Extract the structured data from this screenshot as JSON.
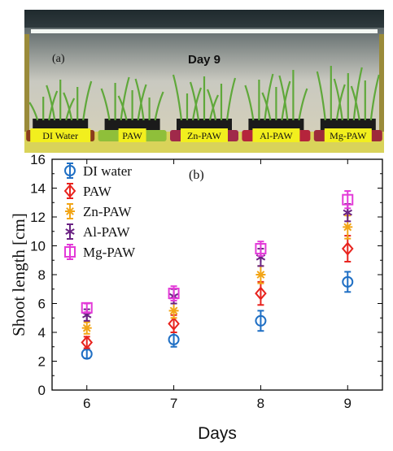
{
  "photo": {
    "panel_label": "(a)",
    "title": "Day 9",
    "tray_labels": [
      "DI Water",
      "PAW",
      "Zn-PAW",
      "Al-PAW",
      "Mg-PAW"
    ],
    "tray_colors": [
      "#8a3b1c",
      "#8fbf3a",
      "#a0294a",
      "#b5243c",
      "#9e2a3a"
    ]
  },
  "chart_data": {
    "type": "scatter",
    "panel_label": "(b)",
    "xlabel": "Days",
    "ylabel": "Shoot length [cm]",
    "x": [
      6,
      7,
      8,
      9
    ],
    "xlim": [
      5.6,
      9.4
    ],
    "ylim": [
      0,
      16
    ],
    "xticks": [
      "6",
      "7",
      "8",
      "9"
    ],
    "yticks": [
      "0",
      "2",
      "4",
      "6",
      "8",
      "10",
      "12",
      "14",
      "16"
    ],
    "grid": false,
    "legend_position": "top-left",
    "series": [
      {
        "name": "DI water",
        "color": "#1f6fc4",
        "marker": "circle",
        "values": [
          2.5,
          3.5,
          4.8,
          7.5
        ],
        "errors": [
          0.3,
          0.5,
          0.7,
          0.7
        ]
      },
      {
        "name": "PAW",
        "color": "#e8231e",
        "marker": "diamond",
        "values": [
          3.3,
          4.6,
          6.7,
          9.8
        ],
        "errors": [
          0.4,
          0.6,
          0.8,
          0.9
        ]
      },
      {
        "name": "Zn-PAW",
        "color": "#f2a516",
        "marker": "asterisk",
        "values": [
          4.3,
          5.5,
          8.0,
          11.3
        ],
        "errors": [
          0.4,
          0.5,
          0.6,
          0.8
        ]
      },
      {
        "name": "Al-PAW",
        "color": "#6a2283",
        "marker": "star",
        "values": [
          5.2,
          6.5,
          9.2,
          12.3
        ],
        "errors": [
          0.4,
          0.5,
          0.6,
          0.6
        ]
      },
      {
        "name": "Mg-PAW",
        "color": "#e33ad8",
        "marker": "square",
        "values": [
          5.7,
          6.7,
          9.8,
          13.2
        ],
        "errors": [
          0.3,
          0.5,
          0.5,
          0.6
        ]
      }
    ]
  }
}
